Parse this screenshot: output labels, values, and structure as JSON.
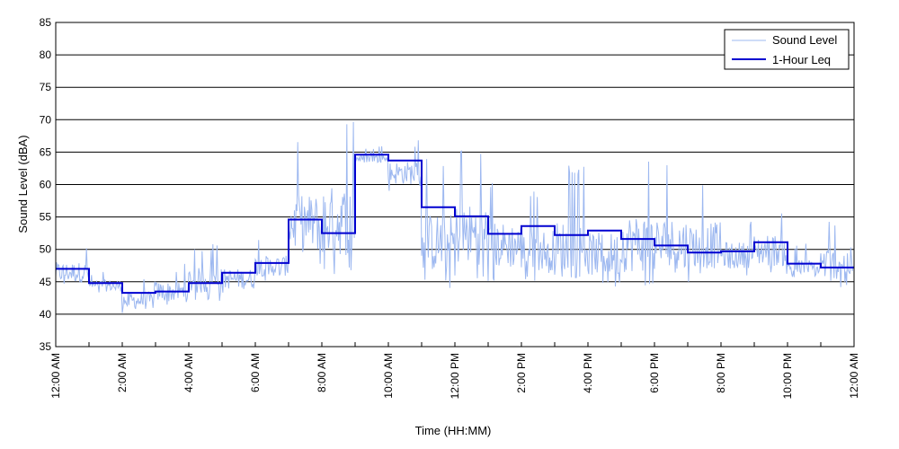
{
  "chart_data": {
    "type": "line",
    "title": "",
    "xlabel": "Time (HH:MM)",
    "ylabel": "Sound Level (dBA)",
    "xlim": [
      0,
      24
    ],
    "ylim": [
      35,
      85
    ],
    "y_ticks": [
      35,
      40,
      45,
      50,
      55,
      60,
      65,
      70,
      75,
      80,
      85
    ],
    "x_ticks": [
      0,
      2,
      4,
      6,
      8,
      10,
      12,
      14,
      16,
      18,
      20,
      22,
      24
    ],
    "x_tick_labels": [
      "12:00 AM",
      "2:00 AM",
      "4:00 AM",
      "6:00 AM",
      "8:00 AM",
      "10:00 AM",
      "12:00 PM",
      "2:00 PM",
      "4:00 PM",
      "6:00 PM",
      "8:00 PM",
      "10:00 PM",
      "12:00 AM"
    ],
    "grid": "horizontal",
    "legend_position": "top-right",
    "series": [
      {
        "name": "Sound Level",
        "color": "#9db8f0",
        "style": "thin-line",
        "approx_hourly_range": [
          {
            "hour": 0,
            "min": 44,
            "max": 51
          },
          {
            "hour": 1,
            "min": 43,
            "max": 47
          },
          {
            "hour": 2,
            "min": 40,
            "max": 46
          },
          {
            "hour": 3,
            "min": 41,
            "max": 48
          },
          {
            "hour": 4,
            "min": 42,
            "max": 51
          },
          {
            "hour": 5,
            "min": 43,
            "max": 50
          },
          {
            "hour": 6,
            "min": 45,
            "max": 52
          },
          {
            "hour": 7,
            "min": 47,
            "max": 67
          },
          {
            "hour": 8,
            "min": 46,
            "max": 70
          },
          {
            "hour": 9,
            "min": 63,
            "max": 66
          },
          {
            "hour": 10,
            "min": 59,
            "max": 67
          },
          {
            "hour": 11,
            "min": 44,
            "max": 64
          },
          {
            "hour": 12,
            "min": 45,
            "max": 66
          },
          {
            "hour": 13,
            "min": 45,
            "max": 61
          },
          {
            "hour": 14,
            "min": 45,
            "max": 59
          },
          {
            "hour": 15,
            "min": 43,
            "max": 63
          },
          {
            "hour": 16,
            "min": 44,
            "max": 59
          },
          {
            "hour": 17,
            "min": 44,
            "max": 64
          },
          {
            "hour": 18,
            "min": 44,
            "max": 63
          },
          {
            "hour": 19,
            "min": 45,
            "max": 61
          },
          {
            "hour": 20,
            "min": 46,
            "max": 55
          },
          {
            "hour": 21,
            "min": 46,
            "max": 57
          },
          {
            "hour": 22,
            "min": 45,
            "max": 51
          },
          {
            "hour": 23,
            "min": 44,
            "max": 55
          }
        ]
      },
      {
        "name": "1-Hour Leq",
        "color": "#0000d0",
        "style": "step",
        "x": [
          0,
          1,
          2,
          3,
          4,
          5,
          6,
          7,
          8,
          9,
          10,
          11,
          12,
          13,
          14,
          15,
          16,
          17,
          18,
          19,
          20,
          21,
          22,
          23
        ],
        "values": [
          47.0,
          44.8,
          43.3,
          43.5,
          44.8,
          46.4,
          47.9,
          54.6,
          52.5,
          64.6,
          63.7,
          56.5,
          55.1,
          52.4,
          53.6,
          52.2,
          52.9,
          51.6,
          50.6,
          49.5,
          49.7,
          51.1,
          47.8,
          47.2
        ]
      }
    ]
  }
}
